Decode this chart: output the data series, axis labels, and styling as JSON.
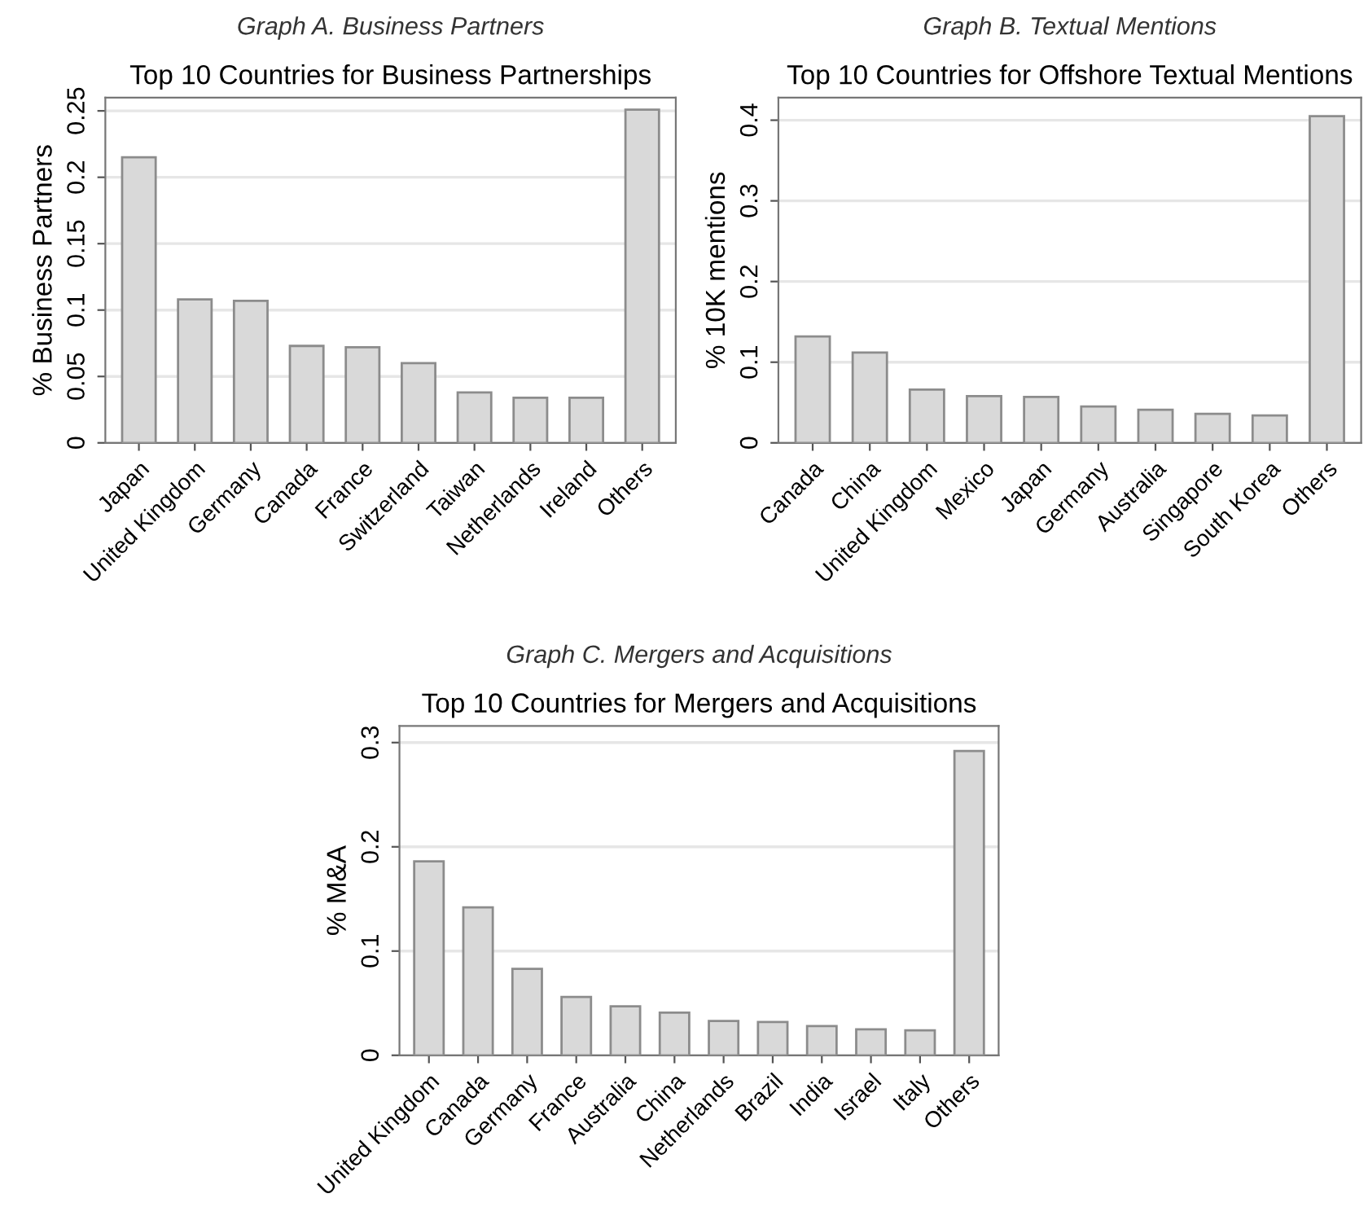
{
  "chart_data": [
    {
      "type": "bar",
      "title": "Graph A. Business Partners",
      "subtitle": "Top 10 Countries for Business Partnerships",
      "ylabel": "% Business Partners",
      "categories": [
        "Japan",
        "United Kingdom",
        "Germany",
        "Canada",
        "France",
        "Switzerland",
        "Taiwan",
        "Netherlands",
        "Ireland",
        "Others"
      ],
      "values": [
        0.215,
        0.108,
        0.107,
        0.073,
        0.072,
        0.06,
        0.038,
        0.034,
        0.034,
        0.251
      ],
      "color": "#d9d9d9",
      "ylim": [
        0,
        0.26
      ],
      "yticks": [
        0,
        0.05,
        0.1,
        0.15,
        0.2,
        0.25
      ],
      "grid": "y",
      "legend": false
    },
    {
      "type": "bar",
      "title": "Graph B. Textual Mentions",
      "subtitle": "Top 10 Countries for Offshore Textual Mentions",
      "ylabel": "% 10K mentions",
      "categories": [
        "Canada",
        "China",
        "United Kingdom",
        "Mexico",
        "Japan",
        "Germany",
        "Australia",
        "Singapore",
        "South Korea",
        "Others"
      ],
      "values": [
        0.132,
        0.112,
        0.066,
        0.058,
        0.057,
        0.045,
        0.041,
        0.036,
        0.034,
        0.405
      ],
      "color": "#d9d9d9",
      "ylim": [
        0,
        0.428
      ],
      "yticks": [
        0,
        0.1,
        0.2,
        0.3,
        0.4
      ],
      "grid": "y",
      "legend": false
    },
    {
      "type": "bar",
      "title": "Graph C. Mergers and Acquisitions",
      "subtitle": "Top 10 Countries for Mergers and Acquisitions",
      "ylabel": "% M&A",
      "categories": [
        "United Kingdom",
        "Canada",
        "Germany",
        "France",
        "Australia",
        "China",
        "Netherlands",
        "Brazil",
        "India",
        "Israel",
        "Italy",
        "Others"
      ],
      "values": [
        0.186,
        0.142,
        0.083,
        0.056,
        0.047,
        0.041,
        0.033,
        0.032,
        0.028,
        0.025,
        0.024,
        0.292
      ],
      "color": "#d9d9d9",
      "ylim": [
        0,
        0.316
      ],
      "yticks": [
        0,
        0.1,
        0.2,
        0.3
      ],
      "grid": "y",
      "legend": false
    }
  ]
}
